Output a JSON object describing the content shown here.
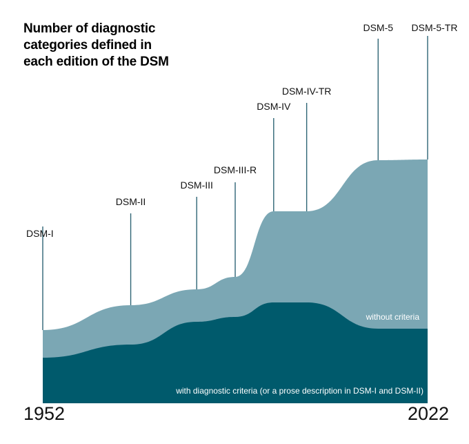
{
  "title_lines": [
    "Number of diagnostic",
    "categories defined in",
    "each edition of the DSM"
  ],
  "colors": {
    "without_criteria": "#7ba7b4",
    "with_criteria": "#005a6c",
    "line": "#2d6474"
  },
  "chart_data": {
    "type": "area",
    "stacked": true,
    "title": "Number of diagnostic categories defined in each edition of the DSM",
    "x_start_label": "1952",
    "x_end_label": "2022",
    "xlim": [
      1952,
      2022
    ],
    "ylim": [
      0,
      400
    ],
    "grid": false,
    "editions": [
      {
        "label": "DSM-I",
        "year": 1952
      },
      {
        "label": "DSM-II",
        "year": 1968
      },
      {
        "label": "DSM-III",
        "year": 1980
      },
      {
        "label": "DSM-III-R",
        "year": 1987
      },
      {
        "label": "DSM-IV",
        "year": 1994
      },
      {
        "label": "DSM-IV-TR",
        "year": 2000
      },
      {
        "label": "DSM-5",
        "year": 2013
      },
      {
        "label": "DSM-5-TR",
        "year": 2022
      }
    ],
    "series": [
      {
        "name": "with diagnostic criteria (or a prose description in DSM-I and DSM-II)",
        "values": [
          66,
          85,
          118,
          125,
          146,
          146,
          108,
          108
        ]
      },
      {
        "name": "without criteria",
        "values": [
          40,
          57,
          47,
          58,
          132,
          132,
          244,
          245
        ]
      }
    ]
  }
}
